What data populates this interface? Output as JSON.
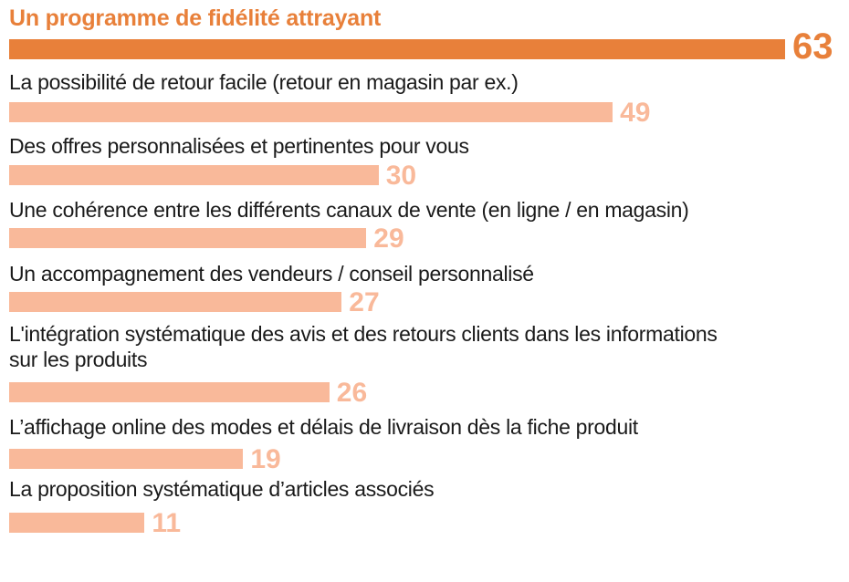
{
  "chart_data": {
    "type": "bar",
    "orientation": "horizontal",
    "title": "",
    "xlabel": "",
    "ylabel": "",
    "xlim": [
      0,
      63
    ],
    "grid": false,
    "categories": [
      "Un programme de fidélité attrayant",
      "La possibilité de retour facile (retour en magasin par ex.)",
      "Des offres personnalisées et pertinentes pour vous",
      "Une cohérence entre les différents canaux de vente (en ligne / en magasin)",
      "Un accompagnement des vendeurs / conseil personnalisé",
      "L'intégration systématique des avis et des retours clients dans les informations\nsur les produits",
      "L’affichage online des modes et délais de livraison dès la fiche produit",
      "La proposition systématique d’articles associés"
    ],
    "values": [
      63,
      49,
      30,
      29,
      27,
      26,
      19,
      11
    ],
    "value_labels": [
      "63",
      "49",
      "30",
      "29",
      "27",
      "26",
      "19",
      "11"
    ],
    "highlight_index": 0,
    "colors": {
      "highlight": "#e8803a",
      "bar": "#f9b99a",
      "label": "#1a1a1a"
    }
  }
}
